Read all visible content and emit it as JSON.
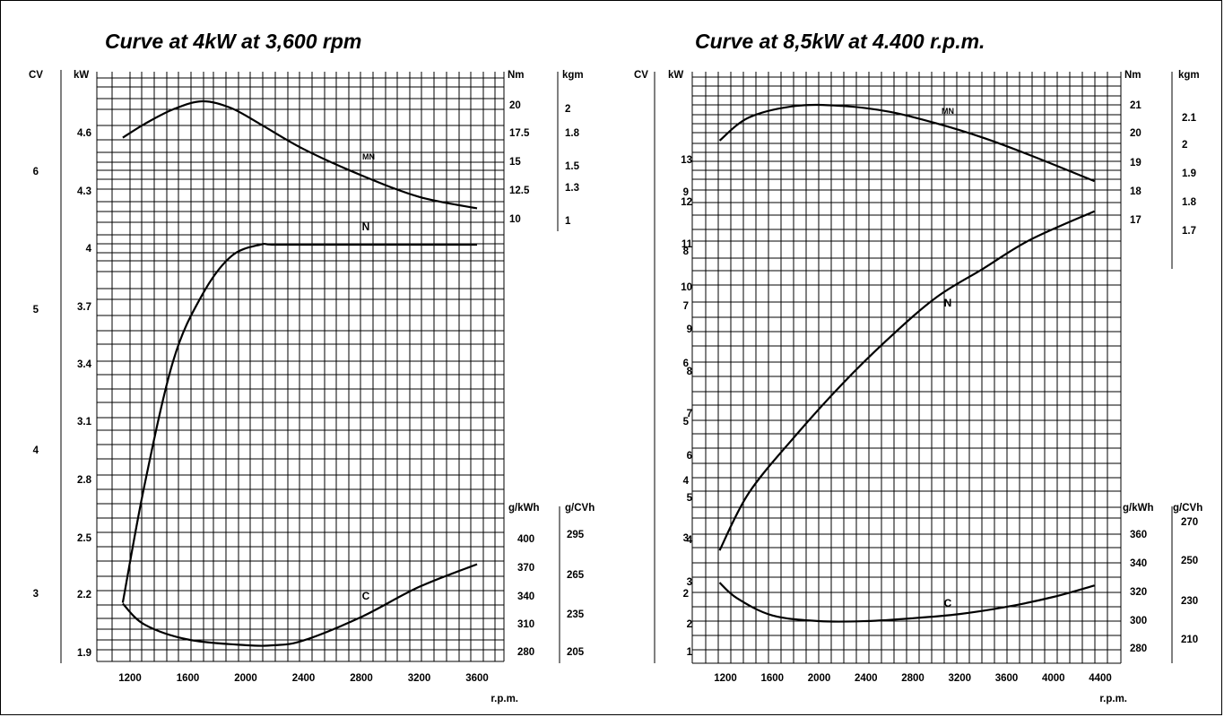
{
  "chart_data": [
    {
      "type": "line",
      "title": "Curve at 4kW at 3,600 rpm",
      "x_unit": "r.p.m.",
      "x_ticks": [
        1200,
        1600,
        2000,
        2400,
        2800,
        3200,
        3600
      ],
      "axes": {
        "cv": {
          "unit": "CV",
          "ticks": [
            "6",
            "5",
            "4",
            "3"
          ]
        },
        "kw": {
          "unit": "kW",
          "ticks": [
            "4.6",
            "4.3",
            "4",
            "3.7",
            "3.4",
            "3.1",
            "2.8",
            "2.5",
            "2.2",
            "1.9"
          ]
        },
        "nm": {
          "unit": "Nm",
          "ticks": [
            "20",
            "17.5",
            "15",
            "12.5",
            "10"
          ]
        },
        "kgm": {
          "unit": "kgm",
          "ticks": [
            "2",
            "1.8",
            "1.5",
            "1.3",
            "1"
          ]
        },
        "gkwh": {
          "unit": "g/kWh",
          "ticks": [
            "400",
            "370",
            "340",
            "310",
            "280"
          ]
        },
        "gcvh": {
          "unit": "g/CVh",
          "ticks": [
            "295",
            "265",
            "235",
            "205"
          ]
        }
      },
      "series": [
        {
          "name": "MN",
          "axis": "Nm",
          "x": [
            1150,
            1300,
            1500,
            1700,
            1900,
            2100,
            2400,
            2800,
            3200,
            3600
          ],
          "y": [
            16.8,
            18.0,
            19.3,
            20.0,
            19.4,
            18.0,
            15.8,
            13.5,
            11.6,
            10.6
          ]
        },
        {
          "name": "N",
          "axis": "kW",
          "x": [
            1150,
            1300,
            1500,
            1700,
            1900,
            2100,
            2200,
            2600,
            3000,
            3600
          ],
          "y": [
            2.14,
            2.75,
            3.4,
            3.74,
            3.94,
            4.0,
            4.0,
            4.0,
            4.0,
            4.0
          ]
        },
        {
          "name": "C",
          "axis": "g/kWh",
          "x": [
            1150,
            1300,
            1600,
            2000,
            2200,
            2400,
            2800,
            3200,
            3600
          ],
          "y": [
            327,
            305,
            289,
            283,
            283,
            288,
            313,
            345,
            369
          ]
        }
      ]
    },
    {
      "type": "line",
      "title": "Curve at 8,5kW at 4.400 r.p.m.",
      "x_unit": "r.p.m.",
      "x_ticks": [
        1200,
        1600,
        2000,
        2400,
        2800,
        3200,
        3600,
        4000,
        4400
      ],
      "axes": {
        "cv": {
          "unit": "CV",
          "ticks": [
            "13",
            "12",
            "11",
            "10",
            "9",
            "8",
            "7",
            "6",
            "5",
            "4",
            "3",
            "2",
            "1"
          ]
        },
        "kw": {
          "unit": "kW",
          "ticks": [
            "9",
            "8",
            "7",
            "6",
            "5",
            "4",
            "3",
            "2"
          ]
        },
        "nm": {
          "unit": "Nm",
          "ticks": [
            "21",
            "20",
            "19",
            "18",
            "17"
          ]
        },
        "kgm": {
          "unit": "kgm",
          "ticks": [
            "2.1",
            "2",
            "1.9",
            "1.8",
            "1.7"
          ]
        },
        "gkwh": {
          "unit": "g/kWh",
          "ticks": [
            "360",
            "340",
            "320",
            "300",
            "280"
          ]
        },
        "gcvh": {
          "unit": "g/CVh",
          "ticks": [
            "270",
            "250",
            "230",
            "210"
          ]
        }
      },
      "series": [
        {
          "name": "MN",
          "axis": "Nm",
          "x": [
            1150,
            1400,
            1800,
            2200,
            2600,
            3000,
            3400,
            3800,
            4350
          ],
          "y": [
            19.7,
            20.5,
            20.9,
            20.9,
            20.7,
            20.3,
            19.8,
            19.2,
            18.3
          ]
        },
        {
          "name": "N",
          "axis": "kW",
          "x": [
            1150,
            1400,
            1800,
            2200,
            2600,
            3000,
            3400,
            3800,
            4350
          ],
          "y": [
            2.7,
            3.7,
            4.7,
            5.6,
            6.4,
            7.1,
            7.6,
            8.1,
            8.6
          ]
        },
        {
          "name": "C",
          "axis": "g/kWh",
          "x": [
            1150,
            1300,
            1600,
            2000,
            2400,
            2800,
            3200,
            3600,
            4000,
            4350
          ],
          "y": [
            324,
            313,
            301,
            297,
            297,
            299,
            302,
            307,
            314,
            322
          ]
        }
      ]
    }
  ]
}
